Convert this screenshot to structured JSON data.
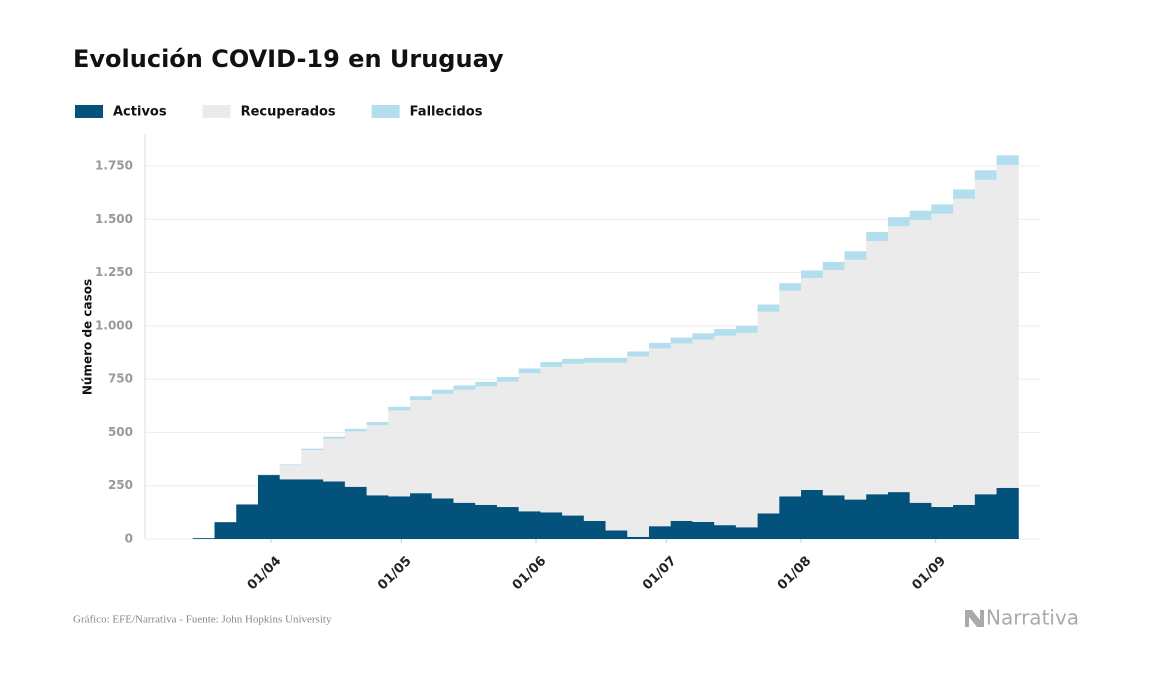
{
  "chart_data": {
    "type": "stacked-step-area",
    "title": "Evolución COVID-19 en Uruguay",
    "y_label": "Número de casos",
    "source": "Gráfico: EFE/Narrativa - Fuente: John Hopkins University",
    "brand": "Narrativa",
    "x": [
      "14/03",
      "19/03",
      "24/03",
      "29/03",
      "03/04",
      "08/04",
      "13/04",
      "18/04",
      "23/04",
      "28/04",
      "03/05",
      "08/05",
      "13/05",
      "18/05",
      "23/05",
      "28/05",
      "02/06",
      "07/06",
      "12/06",
      "17/06",
      "22/06",
      "27/06",
      "02/07",
      "07/07",
      "12/07",
      "17/07",
      "22/07",
      "27/07",
      "01/08",
      "06/08",
      "11/08",
      "16/08",
      "21/08",
      "26/08",
      "31/08",
      "05/09",
      "10/09",
      "15/09"
    ],
    "series": [
      {
        "name": "Activos",
        "color": "#02527c",
        "values": [
          4,
          79,
          162,
          300,
          280,
          280,
          270,
          245,
          205,
          200,
          215,
          190,
          170,
          160,
          150,
          130,
          125,
          110,
          85,
          40,
          10,
          60,
          85,
          80,
          65,
          55,
          120,
          200,
          230,
          205,
          185,
          210,
          220,
          170,
          150,
          160,
          210,
          240
        ]
      },
      {
        "name": "Recuperados",
        "color": "#ebebeb",
        "values": [
          0,
          0,
          0,
          3,
          66,
          137,
          201,
          260,
          329,
          403,
          437,
          491,
          530,
          556,
          588,
          648,
          682,
          712,
          742,
          787,
          846,
          834,
          832,
          856,
          888,
          912,
          946,
          965,
          994,
          1057,
          1125,
          1188,
          1247,
          1327,
          1376,
          1436,
          1475,
          1514
        ]
      },
      {
        "name": "Fallecidos",
        "color": "#b3deee",
        "values": [
          0,
          0,
          0,
          1,
          4,
          7,
          9,
          12,
          15,
          17,
          18,
          19,
          20,
          21,
          22,
          22,
          23,
          23,
          23,
          23,
          24,
          26,
          28,
          29,
          32,
          33,
          34,
          35,
          36,
          38,
          40,
          42,
          43,
          43,
          44,
          44,
          45,
          46
        ]
      }
    ],
    "xlim": [
      "03/03",
      "25/09"
    ],
    "xticks": [
      "01/04",
      "01/05",
      "01/06",
      "01/07",
      "01/08",
      "01/09"
    ],
    "ylim": [
      0,
      1900
    ],
    "yticks": [
      0,
      250,
      500,
      750,
      {
        "value": 1000,
        "label": "1.000"
      },
      {
        "value": 1250,
        "label": "1.250"
      },
      {
        "value": 1500,
        "label": "1.500"
      },
      {
        "value": 1750,
        "label": "1.750"
      }
    ],
    "grid": true
  }
}
